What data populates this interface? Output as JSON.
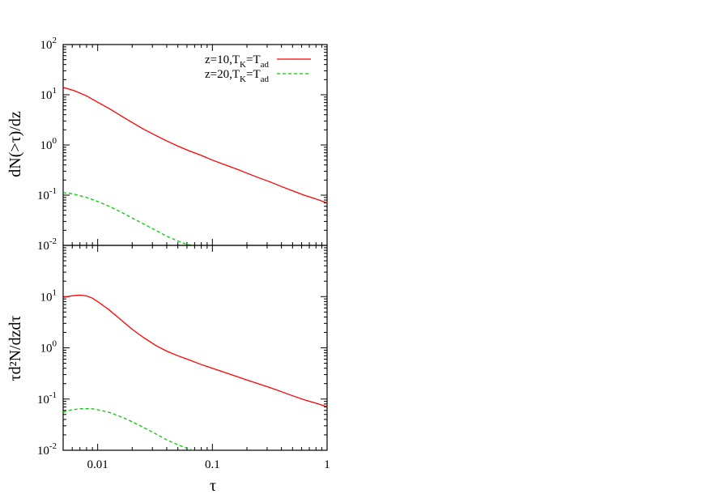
{
  "chart_data": [
    {
      "type": "line",
      "panel": "top",
      "ylabel": "dN(>τ)/dz",
      "xscale": "log",
      "yscale": "log",
      "xlim": [
        0.005,
        1
      ],
      "ylim": [
        0.01,
        100
      ],
      "ytick_labels": [
        {
          "base": "10",
          "exp": "-2",
          "value": 0.01
        },
        {
          "base": "10",
          "exp": "-1",
          "value": 0.1
        },
        {
          "base": "10",
          "exp": "0",
          "value": 1
        },
        {
          "base": "10",
          "exp": "1",
          "value": 10
        },
        {
          "base": "10",
          "exp": "2",
          "value": 100
        }
      ],
      "legend_position": "top-right",
      "series": [
        {
          "name_parts": {
            "a": "z=10,T",
            "b": "K",
            "c": "=T",
            "d": "ad"
          },
          "color": "#ff0000",
          "dash": "solid",
          "x": [
            0.005,
            0.0063,
            0.008,
            0.01,
            0.0126,
            0.016,
            0.02,
            0.025,
            0.032,
            0.04,
            0.05,
            0.063,
            0.08,
            0.1,
            0.126,
            0.16,
            0.2,
            0.25,
            0.32,
            0.4,
            0.5,
            0.63,
            0.8,
            1.0
          ],
          "y": [
            14.0,
            12.0,
            9.5,
            7.1,
            5.3,
            3.8,
            2.8,
            2.08,
            1.55,
            1.2,
            0.95,
            0.76,
            0.62,
            0.5,
            0.41,
            0.335,
            0.275,
            0.225,
            0.183,
            0.149,
            0.122,
            0.1,
            0.084,
            0.07
          ]
        },
        {
          "name_parts": {
            "a": "z=20,T",
            "b": "K",
            "c": "=T",
            "d": "ad"
          },
          "color": "#00cc00",
          "dash": "dashed",
          "x": [
            0.005,
            0.006,
            0.008,
            0.01,
            0.0126,
            0.016,
            0.02,
            0.025,
            0.032,
            0.04,
            0.05,
            0.06,
            0.07
          ],
          "y": [
            0.112,
            0.107,
            0.09,
            0.075,
            0.06,
            0.046,
            0.035,
            0.027,
            0.02,
            0.0152,
            0.0122,
            0.0105,
            0.0098
          ]
        }
      ]
    },
    {
      "type": "line",
      "panel": "bottom",
      "xlabel": "τ",
      "ylabel": "τd²N/dzdτ",
      "xscale": "log",
      "yscale": "log",
      "xlim": [
        0.005,
        1
      ],
      "ylim": [
        0.01,
        100
      ],
      "xtick_labels": [
        {
          "text": "0.01",
          "value": 0.01
        },
        {
          "text": "0.1",
          "value": 0.1
        },
        {
          "text": "1",
          "value": 1
        }
      ],
      "ytick_labels": [
        {
          "base": "10",
          "exp": "-2",
          "value": 0.01
        },
        {
          "base": "10",
          "exp": "-1",
          "value": 0.1
        },
        {
          "base": "10",
          "exp": "0",
          "value": 1
        },
        {
          "base": "10",
          "exp": "1",
          "value": 10
        }
      ],
      "series": [
        {
          "color": "#ff0000",
          "dash": "solid",
          "x": [
            0.005,
            0.006,
            0.007,
            0.008,
            0.009,
            0.01,
            0.0126,
            0.016,
            0.02,
            0.025,
            0.032,
            0.04,
            0.05,
            0.063,
            0.08,
            0.1,
            0.126,
            0.16,
            0.2,
            0.25,
            0.32,
            0.4,
            0.5,
            0.63,
            0.8,
            1.0
          ],
          "y": [
            9.7,
            10.4,
            10.7,
            10.3,
            9.3,
            8.0,
            5.5,
            3.5,
            2.3,
            1.6,
            1.12,
            0.86,
            0.7,
            0.58,
            0.47,
            0.4,
            0.335,
            0.28,
            0.235,
            0.2,
            0.166,
            0.139,
            0.116,
            0.097,
            0.083,
            0.071
          ]
        },
        {
          "color": "#00cc00",
          "dash": "dashed",
          "x": [
            0.005,
            0.006,
            0.007,
            0.008,
            0.009,
            0.01,
            0.0126,
            0.016,
            0.02,
            0.025,
            0.032,
            0.04,
            0.05,
            0.06,
            0.07
          ],
          "y": [
            0.056,
            0.062,
            0.0645,
            0.065,
            0.0645,
            0.062,
            0.055,
            0.045,
            0.036,
            0.028,
            0.021,
            0.016,
            0.0128,
            0.0109,
            0.0098
          ]
        }
      ]
    }
  ]
}
